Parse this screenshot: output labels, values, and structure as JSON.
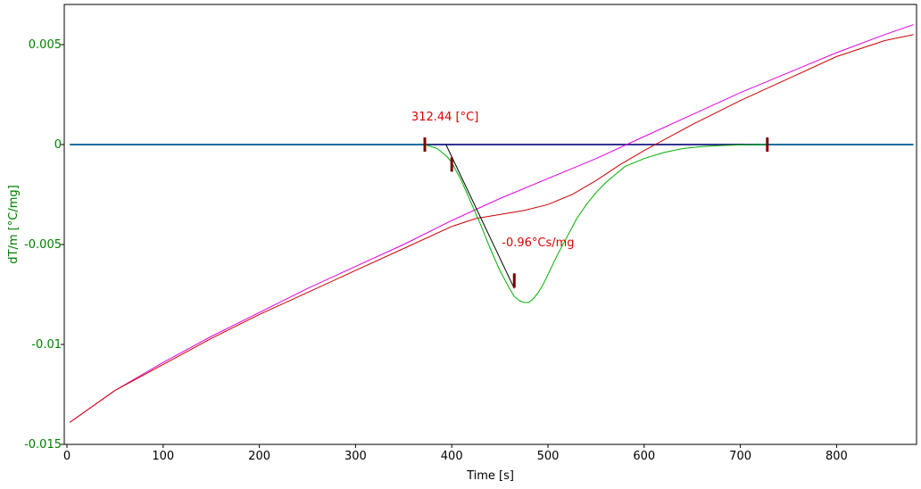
{
  "chart_data": {
    "type": "line",
    "xlabel": "Time [s]",
    "ylabel": "dT/m  [°C/mg]",
    "xlim": [
      0,
      885
    ],
    "ylim": [
      -0.015,
      0.007
    ],
    "x_ticks": [
      0,
      100,
      200,
      300,
      400,
      500,
      600,
      700,
      800
    ],
    "y_ticks": [
      {
        "value": 0.005,
        "label": "0.005"
      },
      {
        "value": 0,
        "label": "0"
      },
      {
        "value": -0.005,
        "label": "-0.005"
      },
      {
        "value": -0.01,
        "label": "-0.01"
      },
      {
        "value": -0.015,
        "label": "-0.015"
      }
    ],
    "grid": false,
    "colors": {
      "axis_text": "#008000",
      "baseline": "#1a6ea0",
      "dtm": "#00b000",
      "magenta": "#e000e0",
      "red": "#cc0000",
      "annotation": "#dd0000",
      "marker": "#7a0000",
      "tangent": "#000000",
      "chord": "#4b0082"
    },
    "series": [
      {
        "key": "baseline",
        "x": [
          3,
          372,
          728,
          880
        ],
        "y": [
          0,
          0,
          0,
          0
        ]
      },
      {
        "key": "dtm",
        "x": [
          372,
          385,
          395,
          400,
          410,
          420,
          430,
          440,
          450,
          460,
          465,
          470,
          475,
          480,
          485,
          490,
          495,
          500,
          510,
          520,
          530,
          540,
          550,
          560,
          570,
          580,
          600,
          620,
          640,
          660,
          680,
          700,
          728
        ],
        "y": [
          0,
          -0.0002,
          -0.0006,
          -0.0009,
          -0.0018,
          -0.0029,
          -0.004,
          -0.0052,
          -0.0063,
          -0.0072,
          -0.0076,
          -0.0078,
          -0.0079,
          -0.0079,
          -0.0077,
          -0.0074,
          -0.007,
          -0.0065,
          -0.0055,
          -0.0046,
          -0.0037,
          -0.003,
          -0.0024,
          -0.0019,
          -0.0015,
          -0.0011,
          -0.0007,
          -0.0004,
          -0.0002,
          -0.0001,
          -5e-05,
          -2e-05,
          0
        ]
      },
      {
        "key": "magenta",
        "x": [
          3,
          50,
          100,
          150,
          200,
          250,
          300,
          350,
          400,
          450,
          500,
          550,
          600,
          650,
          700,
          750,
          800,
          850,
          880
        ],
        "y": [
          -0.0139,
          -0.0123,
          -0.0109,
          -0.0096,
          -0.0084,
          -0.0072,
          -0.0061,
          -0.005,
          -0.0038,
          -0.0027,
          -0.0017,
          -0.0007,
          0.0004,
          0.0015,
          0.0026,
          0.0036,
          0.0046,
          0.0055,
          0.006
        ]
      },
      {
        "key": "red",
        "x": [
          3,
          50,
          100,
          150,
          200,
          250,
          300,
          350,
          400,
          425,
          450,
          475,
          500,
          525,
          550,
          575,
          600,
          650,
          700,
          750,
          800,
          850,
          880
        ],
        "y": [
          -0.0139,
          -0.0123,
          -0.011,
          -0.0097,
          -0.0085,
          -0.0074,
          -0.0063,
          -0.0052,
          -0.0041,
          -0.0037,
          -0.0035,
          -0.0033,
          -0.003,
          -0.0025,
          -0.0018,
          -0.001,
          -0.0003,
          0.001,
          0.0022,
          0.0033,
          0.0044,
          0.0052,
          0.0055
        ]
      }
    ],
    "tangent": {
      "x": [
        394,
        465
      ],
      "y": [
        0,
        -0.0072
      ]
    },
    "chord": {
      "x": [
        372,
        728
      ],
      "y": [
        0,
        0
      ]
    },
    "markers": [
      {
        "x": 372,
        "y": 0
      },
      {
        "x": 400,
        "y": -0.001
      },
      {
        "x": 465,
        "y": -0.0068
      },
      {
        "x": 728,
        "y": 0
      }
    ],
    "annotations": [
      {
        "text": "312.44 [°C]",
        "x": 358,
        "y": 0.0012
      },
      {
        "text": "-0.96°Cs/mg",
        "x": 452,
        "y": -0.0051
      }
    ]
  }
}
